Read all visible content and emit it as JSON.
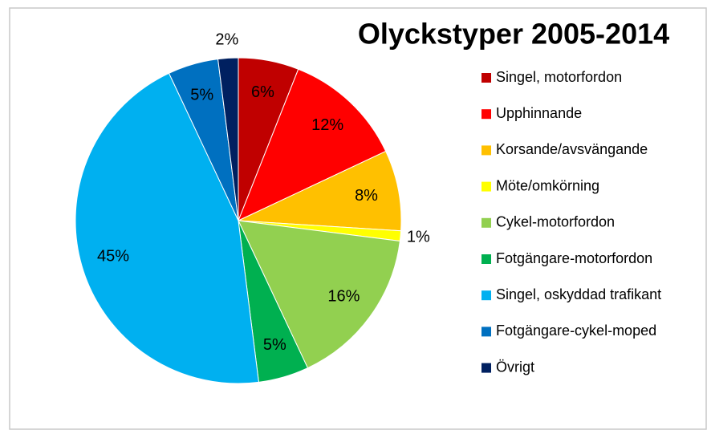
{
  "chart_data": {
    "type": "pie",
    "title": "Olyckstyper 2005-2014",
    "categories": [
      "Singel, motorfordon",
      "Upphinnande",
      "Korsande/avsvängande",
      "Möte/omkörning",
      "Cykel-motorfordon",
      "Fotgängare-motorfordon",
      "Singel, oskyddad trafikant",
      "Fotgängare-cykel-moped",
      "Övrigt"
    ],
    "values": [
      6,
      12,
      8,
      1,
      16,
      5,
      45,
      5,
      2
    ],
    "value_labels": [
      "6%",
      "12%",
      "8%",
      "1%",
      "16%",
      "5%",
      "45%",
      "5%",
      "2%"
    ],
    "colors": [
      "#c00000",
      "#ff0000",
      "#ffc000",
      "#ffff00",
      "#92d050",
      "#00b050",
      "#00b0f0",
      "#0070c0",
      "#002060"
    ],
    "legend": "right"
  }
}
